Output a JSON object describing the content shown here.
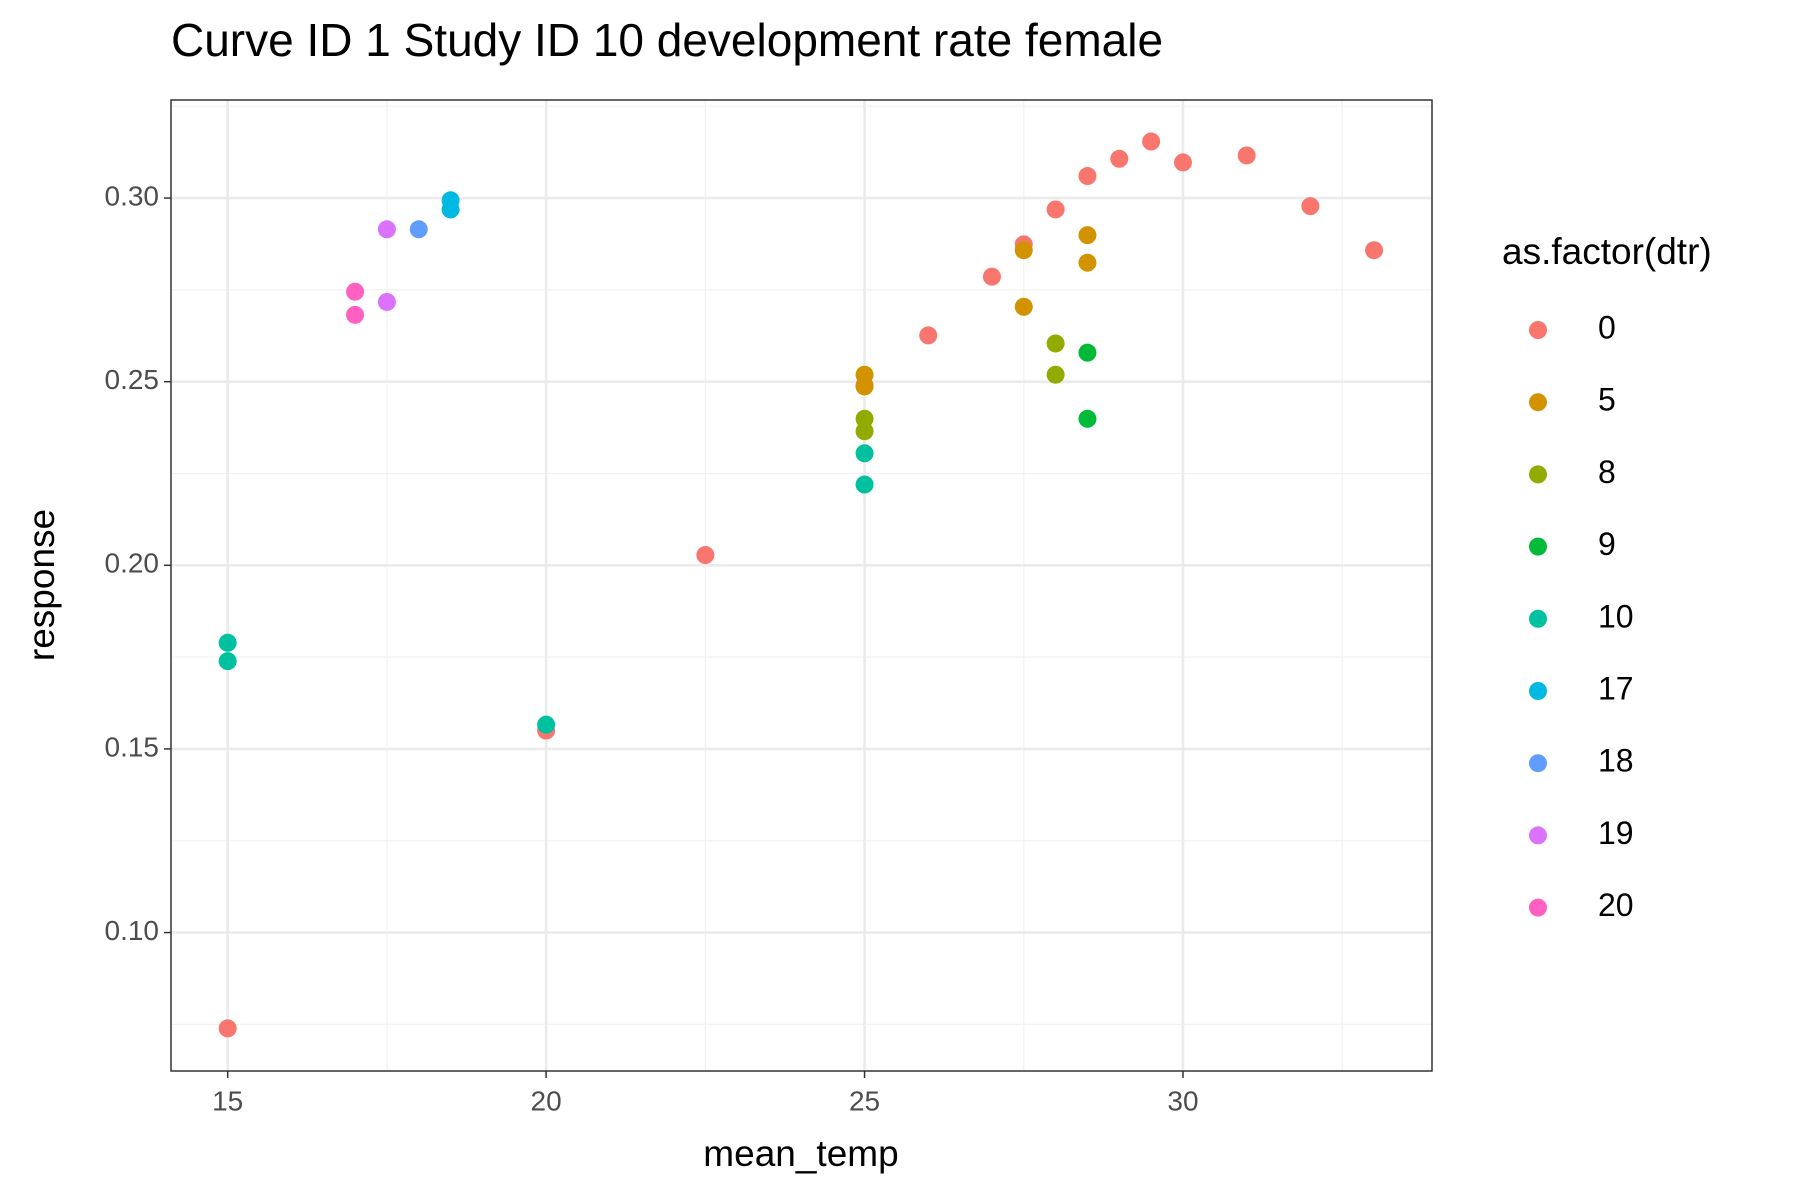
{
  "chart_data": {
    "type": "scatter",
    "title": "Curve ID 1 Study ID 10 development rate female",
    "x_label": "mean_temp",
    "y_label": "response",
    "legend_title": "as.factor(dtr)",
    "legend_position": "right",
    "grid": true,
    "xlim": [
      14.11,
      33.91
    ],
    "ylim": [
      0.0623,
      0.3267
    ],
    "xticks": [
      15,
      20,
      25,
      30
    ],
    "yticks": [
      {
        "value": 0.1,
        "label": "0.10"
      },
      {
        "value": 0.15,
        "label": "0.15"
      },
      {
        "value": 0.2,
        "label": "0.20"
      },
      {
        "value": 0.25,
        "label": "0.25"
      },
      {
        "value": 0.3,
        "label": "0.30"
      }
    ],
    "series": [
      {
        "name": "0",
        "color": "#F8766D",
        "x": [
          15,
          20,
          22.5,
          25,
          26,
          27,
          27.5,
          28,
          28.5,
          29,
          29.5,
          30,
          31,
          32,
          33
        ],
        "values": [
          0.0739,
          0.155,
          0.2028,
          0.249,
          0.2626,
          0.2786,
          0.2874,
          0.2969,
          0.306,
          0.3107,
          0.3154,
          0.3097,
          0.3116,
          0.2978,
          0.2858
        ]
      },
      {
        "name": "5",
        "color": "#D39200",
        "x": [
          25,
          25,
          27.5,
          27.5,
          28.5,
          28.5
        ],
        "values": [
          0.2519,
          0.2487,
          0.2858,
          0.2704,
          0.2899,
          0.2824
        ]
      },
      {
        "name": "8",
        "color": "#93AA00",
        "x": [
          25,
          25,
          28,
          28
        ],
        "values": [
          0.2399,
          0.2365,
          0.2604,
          0.2519
        ]
      },
      {
        "name": "9",
        "color": "#00BA38",
        "x": [
          28.5,
          28.5
        ],
        "values": [
          0.2579,
          0.2399
        ]
      },
      {
        "name": "10",
        "color": "#00C19F",
        "x": [
          15,
          15,
          20,
          25,
          25
        ],
        "values": [
          0.1789,
          0.1739,
          0.1566,
          0.2305,
          0.222
        ]
      },
      {
        "name": "17",
        "color": "#00B9E3",
        "x": [
          18.5,
          18.5
        ],
        "values": [
          0.2994,
          0.2969
        ]
      },
      {
        "name": "18",
        "color": "#619CFF",
        "x": [
          18
        ],
        "values": [
          0.2915
        ]
      },
      {
        "name": "19",
        "color": "#DB72FB",
        "x": [
          17.5,
          17.5
        ],
        "values": [
          0.2915,
          0.2717
        ]
      },
      {
        "name": "20",
        "color": "#FF61C3",
        "x": [
          17,
          17
        ],
        "values": [
          0.2745,
          0.2682
        ]
      }
    ]
  }
}
